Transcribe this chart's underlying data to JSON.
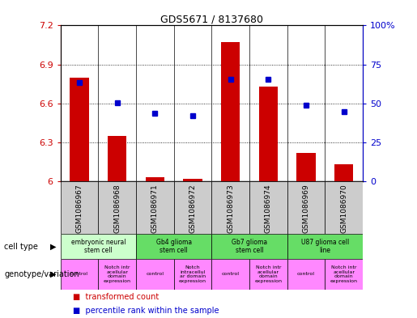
{
  "title": "GDS5671 / 8137680",
  "samples": [
    "GSM1086967",
    "GSM1086968",
    "GSM1086971",
    "GSM1086972",
    "GSM1086973",
    "GSM1086974",
    "GSM1086969",
    "GSM1086970"
  ],
  "red_values": [
    6.8,
    6.35,
    6.03,
    6.02,
    7.07,
    6.73,
    6.22,
    6.13
  ],
  "blue_values": [
    0.635,
    0.505,
    0.435,
    0.42,
    0.655,
    0.655,
    0.49,
    0.445
  ],
  "ylim_left": [
    6.0,
    7.2
  ],
  "ylim_right": [
    0.0,
    1.0
  ],
  "yticks_left": [
    6.0,
    6.3,
    6.6,
    6.9,
    7.2
  ],
  "ytick_labels_left": [
    "6",
    "6.3",
    "6.6",
    "6.9",
    "7.2"
  ],
  "yticks_right": [
    0.0,
    0.25,
    0.5,
    0.75,
    1.0
  ],
  "ytick_labels_right": [
    "0",
    "25",
    "50",
    "75",
    "100%"
  ],
  "cell_type_groups": [
    {
      "label": "embryonic neural\nstem cell",
      "start": 0,
      "end": 2,
      "color": "#ccffcc"
    },
    {
      "label": "Gb4 glioma\nstem cell",
      "start": 2,
      "end": 4,
      "color": "#66dd66"
    },
    {
      "label": "Gb7 glioma\nstem cell",
      "start": 4,
      "end": 6,
      "color": "#66dd66"
    },
    {
      "label": "U87 glioma cell\nline",
      "start": 6,
      "end": 8,
      "color": "#66dd66"
    }
  ],
  "genotype_groups": [
    {
      "label": "control",
      "start": 0,
      "end": 1
    },
    {
      "label": "Notch intr\nacellular\ndomain\nexpression",
      "start": 1,
      "end": 2
    },
    {
      "label": "control",
      "start": 2,
      "end": 3
    },
    {
      "label": "Notch\nintracellul\nar domain\nexpression",
      "start": 3,
      "end": 4
    },
    {
      "label": "control",
      "start": 4,
      "end": 5
    },
    {
      "label": "Notch intr\nacellular\ndomain\nexpression",
      "start": 5,
      "end": 6
    },
    {
      "label": "control",
      "start": 6,
      "end": 7
    },
    {
      "label": "Notch intr\nacellular\ndomain\nexpression",
      "start": 7,
      "end": 8
    }
  ],
  "genotype_color": "#ff88ff",
  "red_color": "#cc0000",
  "blue_color": "#0000cc",
  "bar_bottom": 6.0,
  "sample_bg": "#cccccc",
  "cell_type_row_label": "cell type",
  "genotype_row_label": "genotype/variation",
  "legend_red": "transformed count",
  "legend_blue": "percentile rank within the sample"
}
